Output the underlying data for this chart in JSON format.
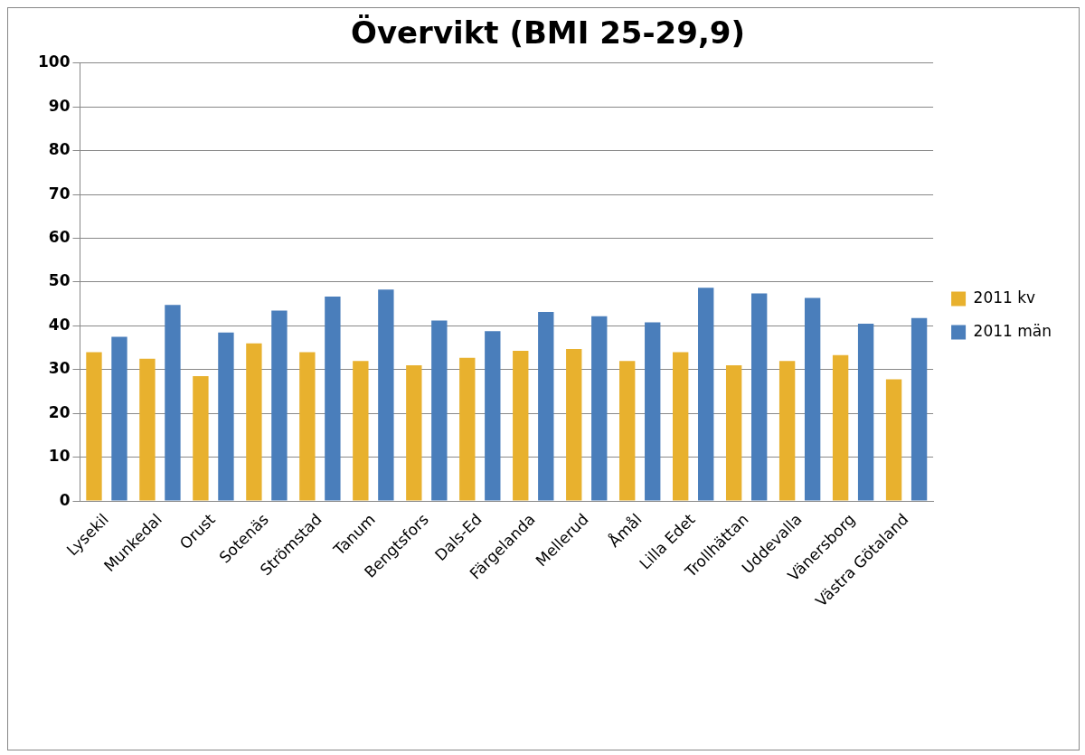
{
  "chart_data": {
    "type": "bar",
    "title": "Övervikt (BMI 25-29,9)",
    "categories": [
      "Lysekil",
      "Munkedal",
      "Orust",
      "Sotenäs",
      "Strömstad",
      "Tanum",
      "Bengtsfors",
      "Dals-Ed",
      "Färgelanda",
      "Mellerud",
      "Åmål",
      "Lilla Edet",
      "Trollhättan",
      "Uddevalla",
      "Vänersborg",
      "Västra Götaland"
    ],
    "series": [
      {
        "name": "2011 kv",
        "color": "#e8b12e",
        "values": [
          34,
          32.5,
          28.5,
          36,
          34,
          32,
          31,
          32.7,
          34.3,
          34.7,
          32,
          34,
          31,
          32,
          33.3,
          27.8
        ]
      },
      {
        "name": "2011 män",
        "color": "#4a7ebb",
        "values": [
          37.5,
          44.8,
          38.5,
          43.5,
          46.7,
          48.3,
          41.2,
          38.8,
          43.2,
          42.2,
          40.8,
          48.7,
          47.4,
          46.4,
          40.5,
          41.8
        ]
      }
    ],
    "ylim": [
      0,
      100
    ],
    "yticks": [
      0,
      10,
      20,
      30,
      40,
      50,
      60,
      70,
      80,
      90,
      100
    ],
    "grid": "y",
    "legend": "right"
  }
}
